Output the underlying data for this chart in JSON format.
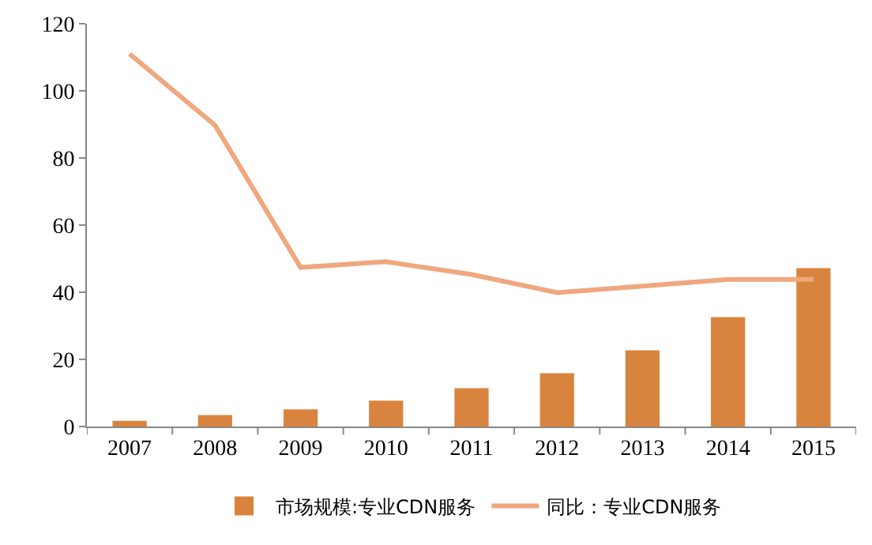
{
  "chart_data": {
    "type": "bar",
    "categories": [
      "2007",
      "2008",
      "2009",
      "2010",
      "2011",
      "2012",
      "2013",
      "2014",
      "2015"
    ],
    "series": [
      {
        "name": "市场规模:专业CDN服务",
        "color": "#d9843e",
        "values": [
          1.7,
          3.4,
          5.1,
          7.7,
          11.4,
          15.9,
          22.7,
          32.6,
          47.2
        ]
      },
      {
        "name": "同比：专业CDN服务",
        "type": "line",
        "color": "#f0a77e",
        "values": [
          111,
          89.7,
          47.4,
          49.1,
          45.3,
          39.9,
          41.8,
          43.8,
          43.8
        ]
      }
    ],
    "ylim": [
      0,
      120
    ],
    "yticks": [
      0,
      20,
      40,
      60,
      80,
      100,
      120
    ],
    "grid": false,
    "legend": "bottom",
    "marker": "none"
  }
}
